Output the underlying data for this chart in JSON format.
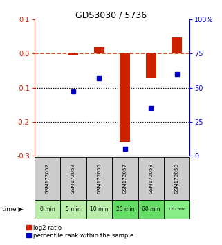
{
  "title": "GDS3030 / 5736",
  "samples": [
    "GSM172052",
    "GSM172053",
    "GSM172055",
    "GSM172057",
    "GSM172058",
    "GSM172059"
  ],
  "time_labels": [
    "0 min",
    "5 min",
    "10 min",
    "20 min",
    "60 min",
    "120 min"
  ],
  "log2_ratio": [
    0.0,
    -0.005,
    0.02,
    -0.26,
    -0.07,
    0.048
  ],
  "percentile_rank": [
    null,
    47,
    57,
    5,
    35,
    60
  ],
  "ylim_left": [
    -0.3,
    0.1
  ],
  "ylim_right": [
    0,
    100
  ],
  "yticks_left": [
    -0.3,
    -0.2,
    -0.1,
    0.0,
    0.1
  ],
  "yticks_right": [
    0,
    25,
    50,
    75,
    100
  ],
  "bar_color": "#cc2200",
  "dot_color": "#0000cc",
  "bg_plot": "#ffffff",
  "bg_sample_gray": "#cccccc",
  "green_colors": [
    "#bbeeaa",
    "#bbeeaa",
    "#bbeeaa",
    "#66dd66",
    "#66dd66",
    "#88ee88"
  ],
  "legend_labels": [
    "log2 ratio",
    "percentile rank within the sample"
  ]
}
